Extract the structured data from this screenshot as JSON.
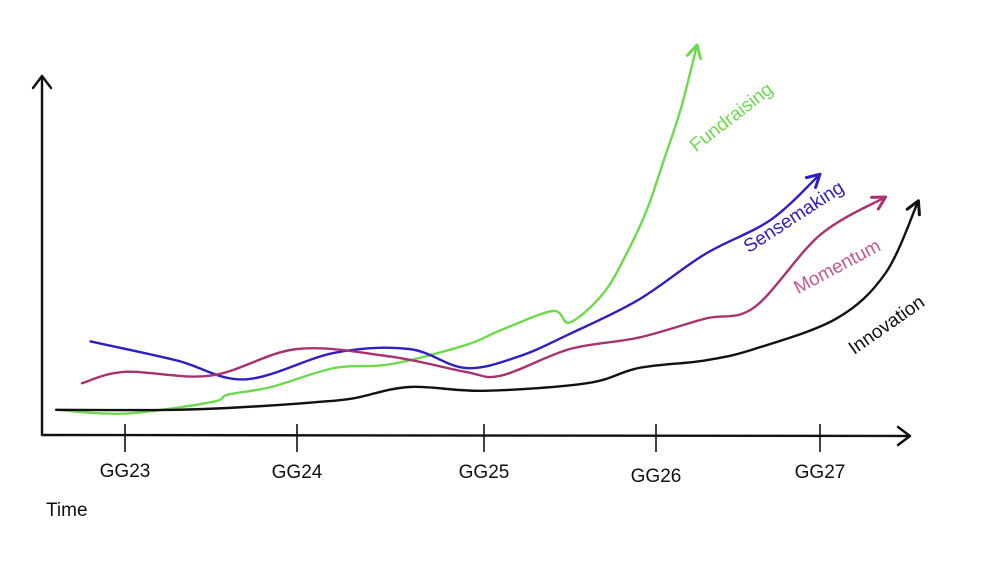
{
  "chart_data": {
    "type": "line",
    "xlabel": "Time",
    "ylabel": "",
    "categories": [
      "GG23",
      "GG24",
      "GG25",
      "GG26",
      "GG27"
    ],
    "grid": false,
    "legend": "inline labels at line ends",
    "series": [
      {
        "name": "Fundraising",
        "color": "#6fd94e",
        "points": [
          [
            -0.4,
            0.04
          ],
          [
            0,
            0.03
          ],
          [
            0.5,
            0.06
          ],
          [
            0.6,
            0.08
          ],
          [
            0.85,
            0.1
          ],
          [
            1.2,
            0.15
          ],
          [
            1.5,
            0.16
          ],
          [
            1.9,
            0.21
          ],
          [
            2.1,
            0.25
          ],
          [
            2.4,
            0.3
          ],
          [
            2.5,
            0.27
          ],
          [
            2.7,
            0.35
          ],
          [
            2.85,
            0.47
          ],
          [
            2.95,
            0.57
          ],
          [
            3.05,
            0.7
          ],
          [
            3.15,
            0.83
          ],
          [
            3.25,
            1.0
          ]
        ]
      },
      {
        "name": "Sensemaking",
        "color": "#2c1fc4",
        "points": [
          [
            -0.2,
            0.22
          ],
          [
            0.3,
            0.17
          ],
          [
            0.7,
            0.12
          ],
          [
            1.2,
            0.19
          ],
          [
            1.6,
            0.2
          ],
          [
            1.9,
            0.15
          ],
          [
            2.2,
            0.18
          ],
          [
            2.5,
            0.24
          ],
          [
            2.9,
            0.33
          ],
          [
            3.3,
            0.45
          ],
          [
            3.7,
            0.54
          ],
          [
            4.0,
            0.66
          ]
        ]
      },
      {
        "name": "Momentum",
        "color": "#a83170",
        "points": [
          [
            -0.25,
            0.11
          ],
          [
            0,
            0.14
          ],
          [
            0.5,
            0.13
          ],
          [
            1.0,
            0.2
          ],
          [
            1.5,
            0.18
          ],
          [
            1.9,
            0.14
          ],
          [
            2.1,
            0.13
          ],
          [
            2.5,
            0.2
          ],
          [
            2.9,
            0.23
          ],
          [
            3.3,
            0.28
          ],
          [
            3.6,
            0.31
          ],
          [
            4.0,
            0.5
          ],
          [
            4.4,
            0.6
          ]
        ]
      },
      {
        "name": "Innovation",
        "color": "#111111",
        "points": [
          [
            -0.4,
            0.04
          ],
          [
            0.3,
            0.04
          ],
          [
            0.8,
            0.05
          ],
          [
            1.1,
            0.06
          ],
          [
            1.3,
            0.07
          ],
          [
            1.6,
            0.1
          ],
          [
            2.0,
            0.09
          ],
          [
            2.6,
            0.11
          ],
          [
            2.9,
            0.15
          ],
          [
            3.3,
            0.17
          ],
          [
            3.6,
            0.2
          ],
          [
            4.1,
            0.28
          ],
          [
            4.4,
            0.4
          ],
          [
            4.6,
            0.59
          ]
        ]
      }
    ]
  }
}
